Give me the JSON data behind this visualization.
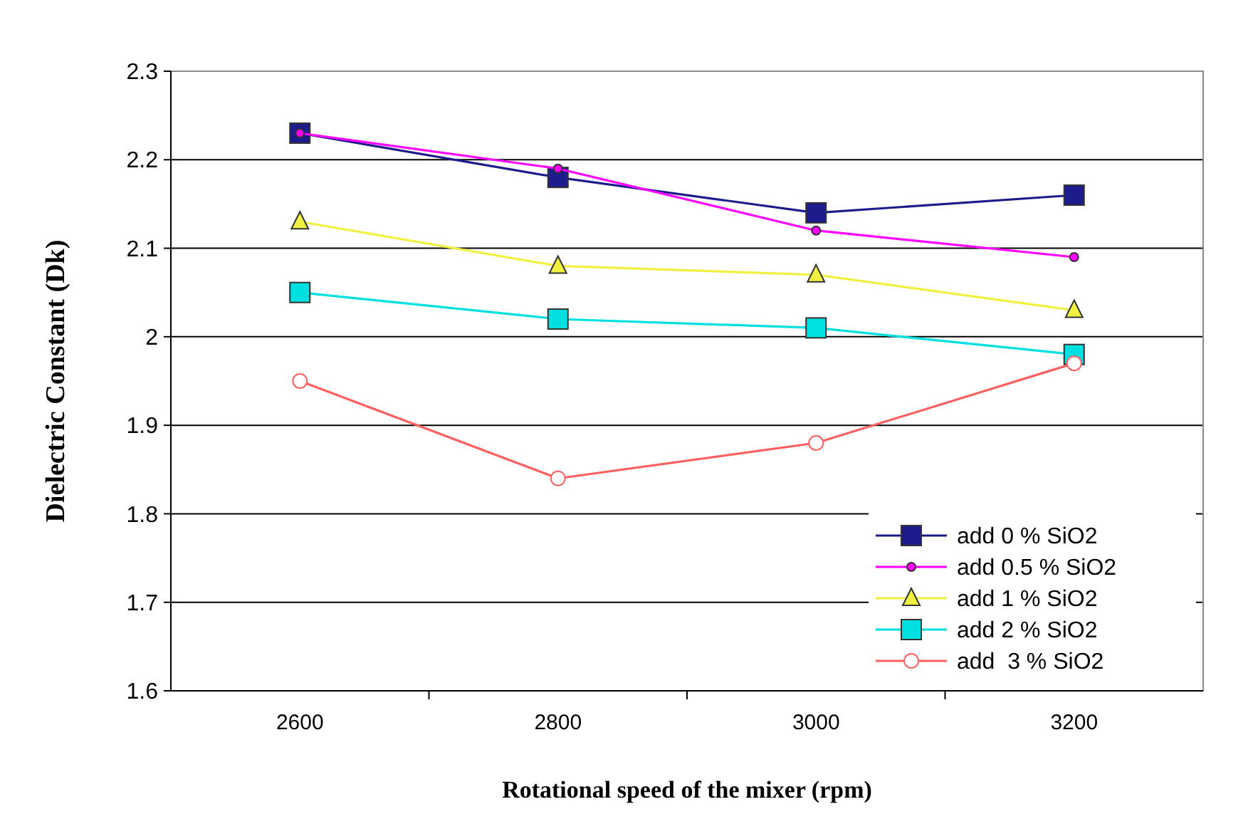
{
  "chart_data": {
    "type": "line",
    "xlabel": "Rotational speed of the mixer (rpm)",
    "ylabel": "Dielectric Constant (Dk)",
    "categories": [
      "2600",
      "2800",
      "3000",
      "3200"
    ],
    "ylim": [
      1.6,
      2.3
    ],
    "yticks": [
      1.6,
      1.7,
      1.8,
      1.9,
      2,
      2.1,
      2.2,
      2.3
    ],
    "grid": "y",
    "legend": "bottom right",
    "series": [
      {
        "name": "add 0 % SiO2",
        "color": "#1c1c8c",
        "marker": "square",
        "values": [
          2.23,
          2.18,
          2.14,
          2.16
        ]
      },
      {
        "name": "add 0.5 % SiO2",
        "color": "#ff00ff",
        "marker": "circle",
        "values": [
          2.23,
          2.19,
          2.12,
          2.09
        ]
      },
      {
        "name": "add 1 % SiO2",
        "color": "#f0f040",
        "marker": "triangle",
        "values": [
          2.13,
          2.08,
          2.07,
          2.03
        ]
      },
      {
        "name": "add 2 % SiO2",
        "color": "#00e0e0",
        "marker": "square",
        "values": [
          2.05,
          2.02,
          2.01,
          1.98
        ]
      },
      {
        "name": "add  3 % SiO2",
        "color": "#ff6060",
        "marker": "circle",
        "values": [
          1.95,
          1.84,
          1.88,
          1.97
        ]
      }
    ]
  }
}
